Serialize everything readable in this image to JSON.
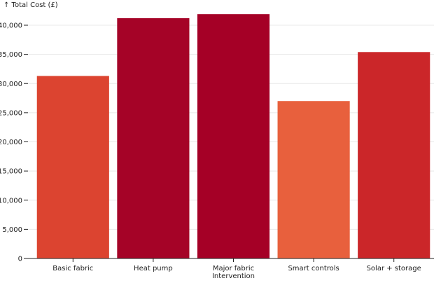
{
  "chart_data": {
    "type": "bar",
    "title": "",
    "xlabel": "",
    "ylabel": "↑ Total Cost (£)",
    "ylim": [
      0,
      40000
    ],
    "yticks": [
      0,
      5000,
      10000,
      15000,
      20000,
      25000,
      30000,
      35000,
      40000
    ],
    "ytick_labels": [
      "0",
      "5,000",
      "10,000",
      "15,000",
      "20,000",
      "25,000",
      "30,000",
      "35,000",
      "40,000"
    ],
    "grid": true,
    "categories": [
      "Basic fabric",
      "Heat pump",
      "Major fabric Intervention",
      "Smart controls",
      "Solar + storage"
    ],
    "category_lines": [
      [
        "Basic fabric"
      ],
      [
        "Heat pump"
      ],
      [
        "Major fabric",
        "Intervention"
      ],
      [
        "Smart controls"
      ],
      [
        "Solar + storage"
      ]
    ],
    "values": [
      31300,
      41200,
      41900,
      27000,
      35400
    ],
    "colors": [
      "#dc4430",
      "#a50327",
      "#a50026",
      "#e8603d",
      "#cb2629"
    ]
  }
}
